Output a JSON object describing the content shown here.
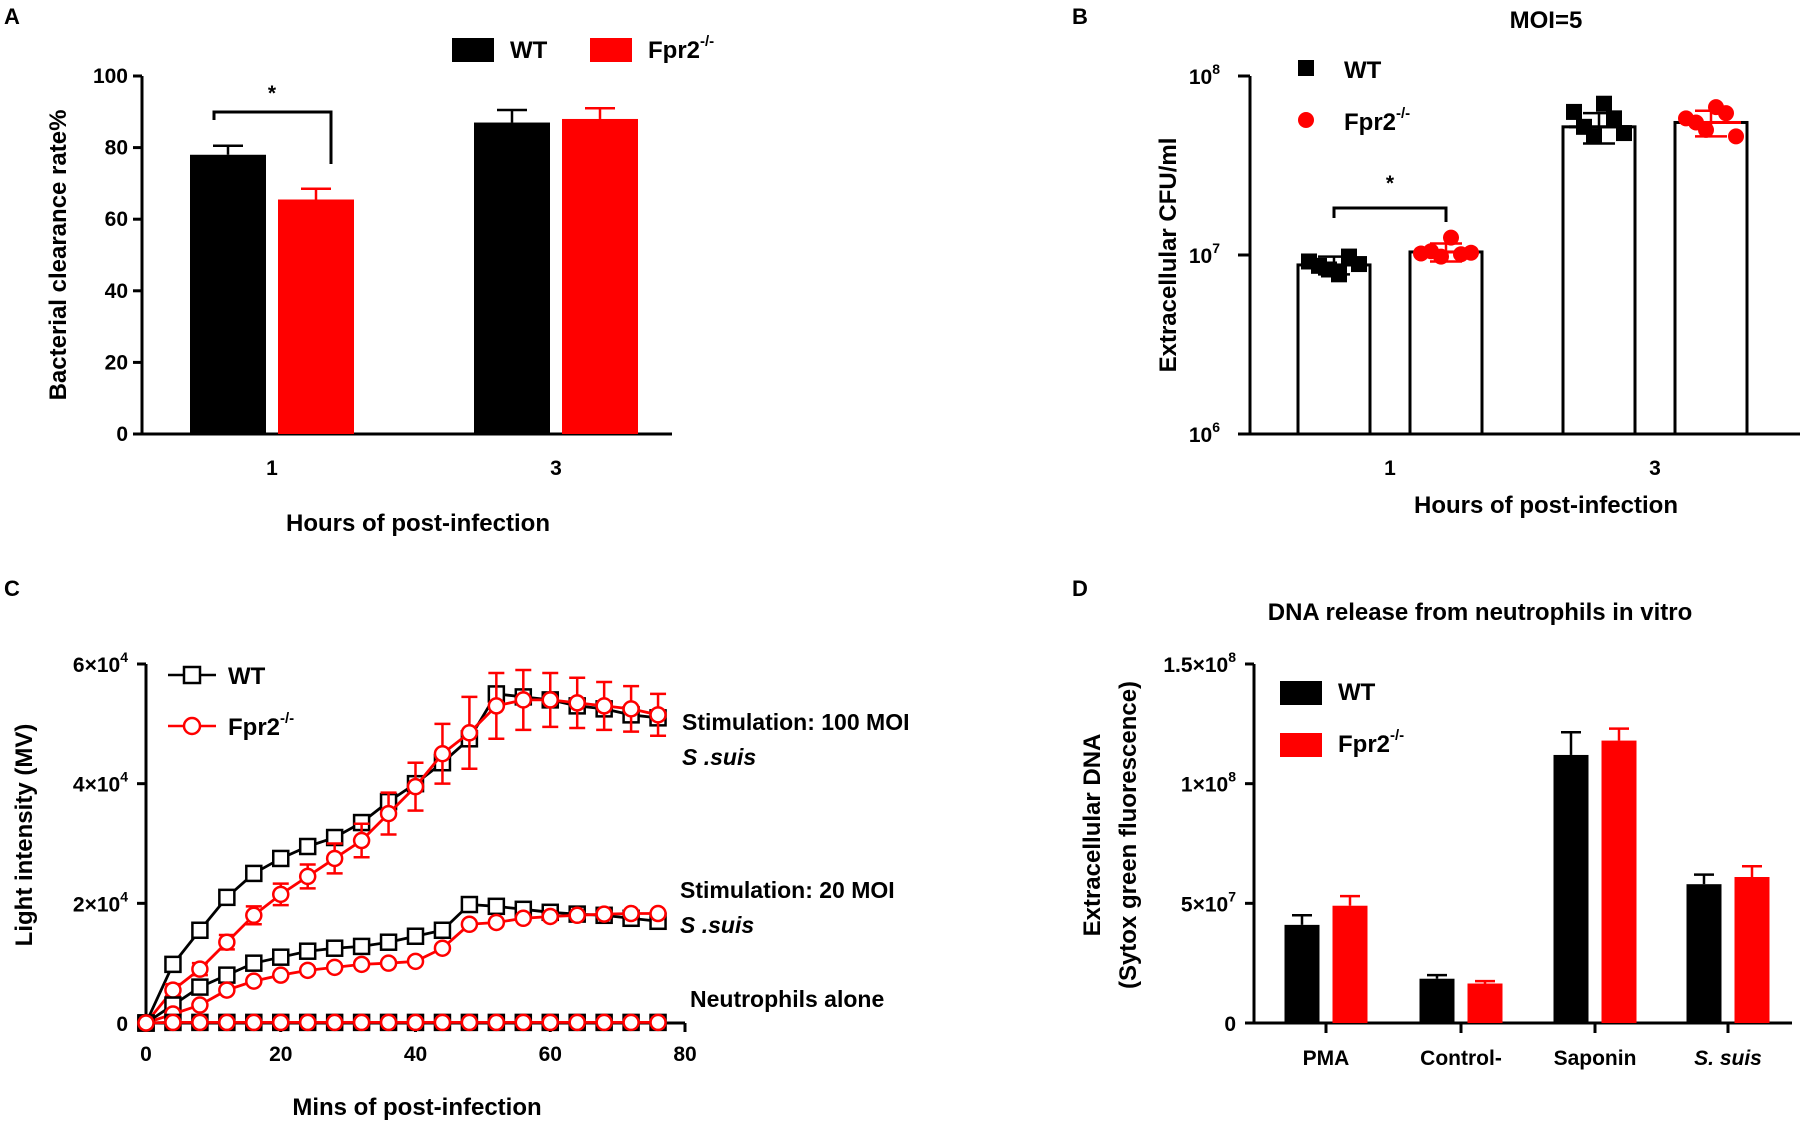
{
  "chart_data": [
    {
      "panel": "A",
      "type": "bar",
      "title": "",
      "categories": [
        "1",
        "3"
      ],
      "series": [
        {
          "name": "WT",
          "color": "#000000",
          "values": [
            78,
            87
          ],
          "errors": [
            2.5,
            3.5
          ]
        },
        {
          "name": "Fpr2-/-",
          "color": "#ff0000",
          "values": [
            65.5,
            88
          ],
          "errors": [
            3,
            3
          ]
        }
      ],
      "xlabel": "Hours of post-infection",
      "ylabel": "Bacterial clearance rate%",
      "ylim": [
        0,
        100
      ],
      "yticks": [
        "0",
        "20",
        "40",
        "60",
        "80",
        "100"
      ],
      "legend": {
        "position": "top",
        "entries": [
          {
            "label": "WT",
            "sup": ""
          },
          {
            "label": "Fpr2",
            "sup": "-/-"
          }
        ]
      },
      "annotation": "*"
    },
    {
      "panel": "B",
      "type": "bar",
      "title": "MOI=5",
      "scale": "log",
      "categories": [
        "1",
        "3"
      ],
      "series": [
        {
          "name": "WT",
          "color": "#000000",
          "values": [
            8800000,
            52000000
          ],
          "errors": [
            1000000,
            10000000
          ],
          "points": [
            [
              9200000,
              8700000,
              8300000,
              7800000,
              9800000,
              8900000
            ],
            [
              63000000,
              52000000,
              46000000,
              70000000,
              58000000,
              48000000
            ]
          ]
        },
        {
          "name": "Fpr2-/-",
          "color": "#ff0000",
          "values": [
            10400000,
            55000000
          ],
          "errors": [
            1200000,
            9000000
          ],
          "points": [
            [
              10200000,
              10500000,
              9800000,
              12500000,
              10100000,
              10300000
            ],
            [
              58000000,
              55000000,
              50000000,
              67000000,
              62000000,
              46000000
            ]
          ]
        }
      ],
      "xlabel": "Hours of post-infection",
      "ylabel": "Extracellular CFU/ml",
      "ylim": [
        1000000,
        100000000
      ],
      "yticks": [
        {
          "base": "10",
          "exp": "6"
        },
        {
          "base": "10",
          "exp": "7"
        },
        {
          "base": "10",
          "exp": "8"
        }
      ],
      "legend": {
        "position": "top-left",
        "entries": [
          {
            "label": "WT",
            "sup": ""
          },
          {
            "label": "Fpr2",
            "sup": "-/-"
          }
        ]
      },
      "annotation": "*"
    },
    {
      "panel": "C",
      "type": "line",
      "title": "",
      "x": [
        0,
        4,
        8,
        12,
        16,
        20,
        24,
        28,
        32,
        36,
        40,
        44,
        48,
        52,
        56,
        60,
        64,
        68,
        72,
        76
      ],
      "series": [
        {
          "name": "WT",
          "group": "Stimulation: 100 MOI",
          "color": "#000000",
          "marker": "square",
          "values": [
            0,
            9800,
            15500,
            21000,
            25000,
            27500,
            29500,
            31000,
            33500,
            37000,
            40000,
            43500,
            47500,
            55000,
            54500,
            54000,
            53000,
            52500,
            51500,
            51000
          ],
          "errors": []
        },
        {
          "name": "Fpr2-/-",
          "group": "Stimulation: 100 MOI",
          "color": "#ff0000",
          "marker": "circle",
          "values": [
            0,
            5500,
            9000,
            13500,
            18000,
            21500,
            24500,
            27500,
            30500,
            35000,
            39500,
            45000,
            48500,
            53000,
            54000,
            54000,
            53500,
            53000,
            52500,
            51500
          ],
          "errors": [
            0,
            1000,
            1000,
            1200,
            1500,
            1800,
            2000,
            2500,
            2800,
            3500,
            4000,
            5000,
            6000,
            5500,
            5000,
            4500,
            4200,
            4000,
            3800,
            3500
          ]
        },
        {
          "name": "WT",
          "group": "Stimulation: 20 MOI",
          "color": "#000000",
          "marker": "square",
          "values": [
            0,
            3000,
            6000,
            8000,
            10000,
            11000,
            12000,
            12500,
            12800,
            13500,
            14500,
            15500,
            19800,
            19500,
            19000,
            18500,
            18200,
            18000,
            17500,
            17000
          ],
          "errors": []
        },
        {
          "name": "Fpr2-/-",
          "group": "Stimulation: 20 MOI",
          "color": "#ff0000",
          "marker": "circle",
          "values": [
            0,
            1500,
            3000,
            5500,
            7000,
            8000,
            8800,
            9300,
            9800,
            10000,
            10300,
            12500,
            16500,
            16800,
            17500,
            17800,
            18000,
            18200,
            18300,
            18300
          ],
          "errors": []
        },
        {
          "name": "WT",
          "group": "Neutrophils alone",
          "color": "#000000",
          "marker": "square",
          "values": [
            0,
            100,
            100,
            100,
            100,
            100,
            100,
            100,
            100,
            100,
            100,
            100,
            100,
            100,
            100,
            100,
            100,
            100,
            100,
            100
          ],
          "errors": []
        },
        {
          "name": "Fpr2-/-",
          "group": "Neutrophils alone",
          "color": "#ff0000",
          "marker": "circle",
          "values": [
            0,
            100,
            100,
            100,
            100,
            100,
            100,
            100,
            100,
            100,
            100,
            100,
            100,
            100,
            100,
            100,
            100,
            100,
            100,
            100
          ],
          "errors": []
        }
      ],
      "xlabel": "Mins of post-infection",
      "ylabel": "Light intensity (MV)",
      "xlim": [
        0,
        80
      ],
      "ylim": [
        0,
        60000
      ],
      "xticks": [
        "0",
        "20",
        "40",
        "60",
        "80"
      ],
      "yticks": [
        {
          "v": "0",
          "e": ""
        },
        {
          "v": "2×10",
          "e": "4"
        },
        {
          "v": "4×10",
          "e": "4"
        },
        {
          "v": "6×10",
          "e": "4"
        }
      ],
      "legend": {
        "position": "top-left",
        "entries": [
          {
            "label": "WT",
            "sup": ""
          },
          {
            "label": "Fpr2",
            "sup": "-/-"
          }
        ]
      },
      "annotations": [
        {
          "line1": "Stimulation: 100 MOI",
          "line2": "S .suis"
        },
        {
          "line1": "Stimulation: 20 MOI",
          "line2": "S .suis"
        },
        {
          "line1": "Neutrophils alone",
          "line2": ""
        }
      ]
    },
    {
      "panel": "D",
      "type": "bar",
      "title": "DNA release from neutrophils in vitro",
      "categories": [
        "PMA",
        "Control-",
        "Saponin",
        "S. suis"
      ],
      "series": [
        {
          "name": "WT",
          "color": "#000000",
          "values": [
            41000000,
            18500000,
            112000000,
            58000000
          ],
          "errors": [
            4000000,
            1500000,
            9500000,
            4000000
          ]
        },
        {
          "name": "Fpr2-/-",
          "color": "#ff0000",
          "values": [
            49000000,
            16500000,
            118000000,
            61000000
          ],
          "errors": [
            4000000,
            1000000,
            5000000,
            4500000
          ]
        }
      ],
      "xlabel": "",
      "ylabel": [
        "Extracellular DNA",
        "(Sytox green fluorescence)"
      ],
      "ylim": [
        0,
        150000000
      ],
      "yticks": [
        {
          "v": "0",
          "e": ""
        },
        {
          "v": "5×10",
          "e": "7"
        },
        {
          "v": "1×10",
          "e": "8"
        },
        {
          "v": "1.5×10",
          "e": "8"
        }
      ],
      "legend": {
        "position": "top-left",
        "entries": [
          {
            "label": "WT",
            "sup": ""
          },
          {
            "label": "Fpr2",
            "sup": "-/-"
          }
        ]
      }
    }
  ],
  "panels": {
    "a": "A",
    "b": "B",
    "c": "C",
    "d": "D"
  }
}
